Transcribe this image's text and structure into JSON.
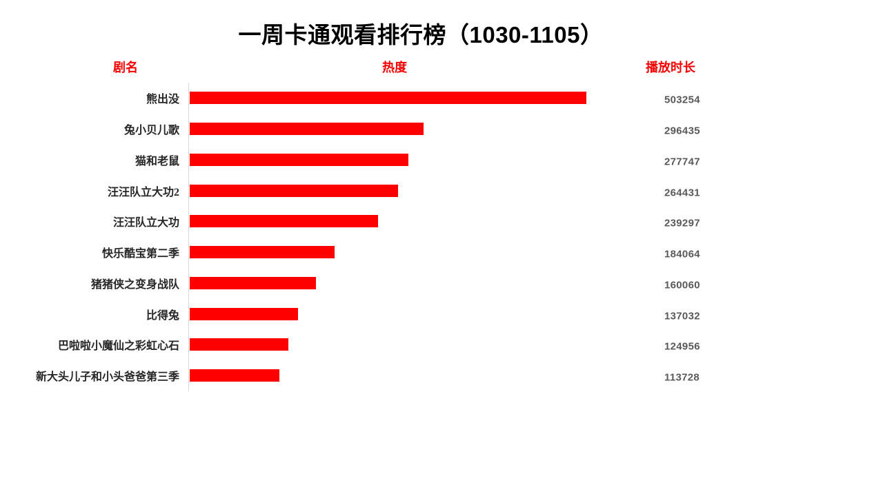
{
  "title": "一周卡通观看排行榜（1030-1105）",
  "columns": {
    "name": "剧名",
    "heat": "热度",
    "duration": "播放时长"
  },
  "colors": {
    "bar": "#fe0000",
    "header_text": "#f40000",
    "value_text": "#595959",
    "label_text": "#262626",
    "axis_line": "#d9d9d9",
    "title_text": "#000000",
    "background": "#ffffff"
  },
  "chart_data": {
    "type": "bar",
    "orientation": "horizontal",
    "title": "一周卡通观看排行榜（1030-1105）",
    "series_label": "播放时长",
    "categories": [
      "熊出没",
      "兔小贝儿歌",
      "猫和老鼠",
      "汪汪队立大功2",
      "汪汪队立大功",
      "快乐酷宝第二季",
      "猪猪侠之变身战队",
      "比得兔",
      "巴啦啦小魔仙之彩虹心石",
      "新大头儿子和小头爸爸第三季"
    ],
    "values": [
      503254,
      296435,
      277747,
      264431,
      239297,
      184064,
      160060,
      137032,
      124956,
      113728
    ],
    "xlim": [
      0,
      560000
    ],
    "grid": false,
    "legend": false,
    "value_labels_position": "right-column"
  }
}
